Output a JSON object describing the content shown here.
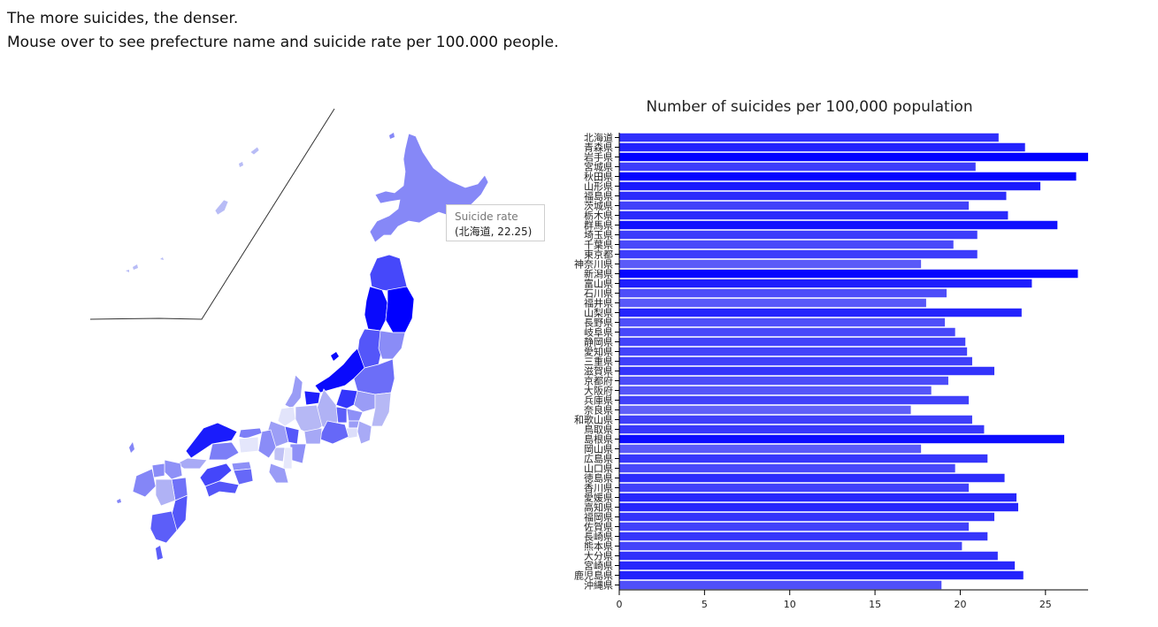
{
  "intro": {
    "line1": "The more suicides, the denser.",
    "line2": "Mouse over to see prefecture name and suicide rate per 100.000 people."
  },
  "tooltip": {
    "title": "Suicide rate",
    "value": "(北海道, 22.25)"
  },
  "colors": {
    "bar_max": "#0000ff",
    "bar_min": "#6060f8",
    "map_light": "#e4e6fb",
    "map_dark": "#0000ff"
  },
  "chart_data": {
    "type": "bar",
    "orientation": "horizontal",
    "title": "Number of suicides per 100,000 population",
    "xlabel": "",
    "ylabel": "",
    "xlim": [
      0,
      27.5
    ],
    "xticks": [
      0,
      5,
      10,
      15,
      20,
      25
    ],
    "categories": [
      "北海道",
      "青森県",
      "岩手県",
      "宮城県",
      "秋田県",
      "山形県",
      "福島県",
      "茨城県",
      "栃木県",
      "群馬県",
      "埼玉県",
      "千葉県",
      "東京都",
      "神奈川県",
      "新潟県",
      "富山県",
      "石川県",
      "福井県",
      "山梨県",
      "長野県",
      "岐阜県",
      "静岡県",
      "愛知県",
      "三重県",
      "滋賀県",
      "京都府",
      "大阪府",
      "兵庫県",
      "奈良県",
      "和歌山県",
      "鳥取県",
      "島根県",
      "岡山県",
      "広島県",
      "山口県",
      "徳島県",
      "香川県",
      "愛媛県",
      "高知県",
      "福岡県",
      "佐賀県",
      "長崎県",
      "熊本県",
      "大分県",
      "宮崎県",
      "鹿児島県",
      "沖縄県"
    ],
    "values": [
      22.25,
      23.8,
      27.5,
      20.9,
      26.8,
      24.7,
      22.7,
      20.5,
      22.8,
      25.7,
      21.0,
      19.6,
      21.0,
      17.7,
      26.9,
      24.2,
      19.2,
      18.0,
      23.6,
      19.1,
      19.7,
      20.3,
      20.4,
      20.7,
      22.0,
      19.3,
      18.3,
      20.5,
      17.1,
      20.7,
      21.4,
      26.1,
      17.7,
      21.6,
      19.7,
      22.6,
      20.5,
      23.3,
      23.4,
      22.0,
      20.5,
      21.6,
      20.1,
      22.2,
      23.2,
      23.7,
      18.9
    ],
    "grid": false,
    "legend": "none"
  }
}
